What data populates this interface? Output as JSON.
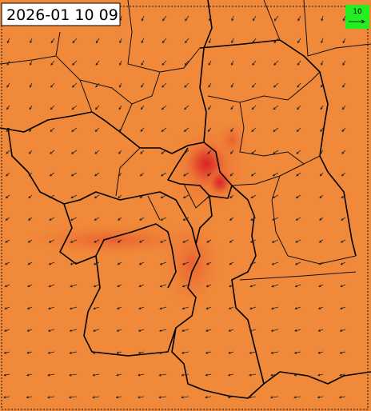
{
  "timestamp": "2026-01 10 09",
  "legend": {
    "label": "10"
  }
}
